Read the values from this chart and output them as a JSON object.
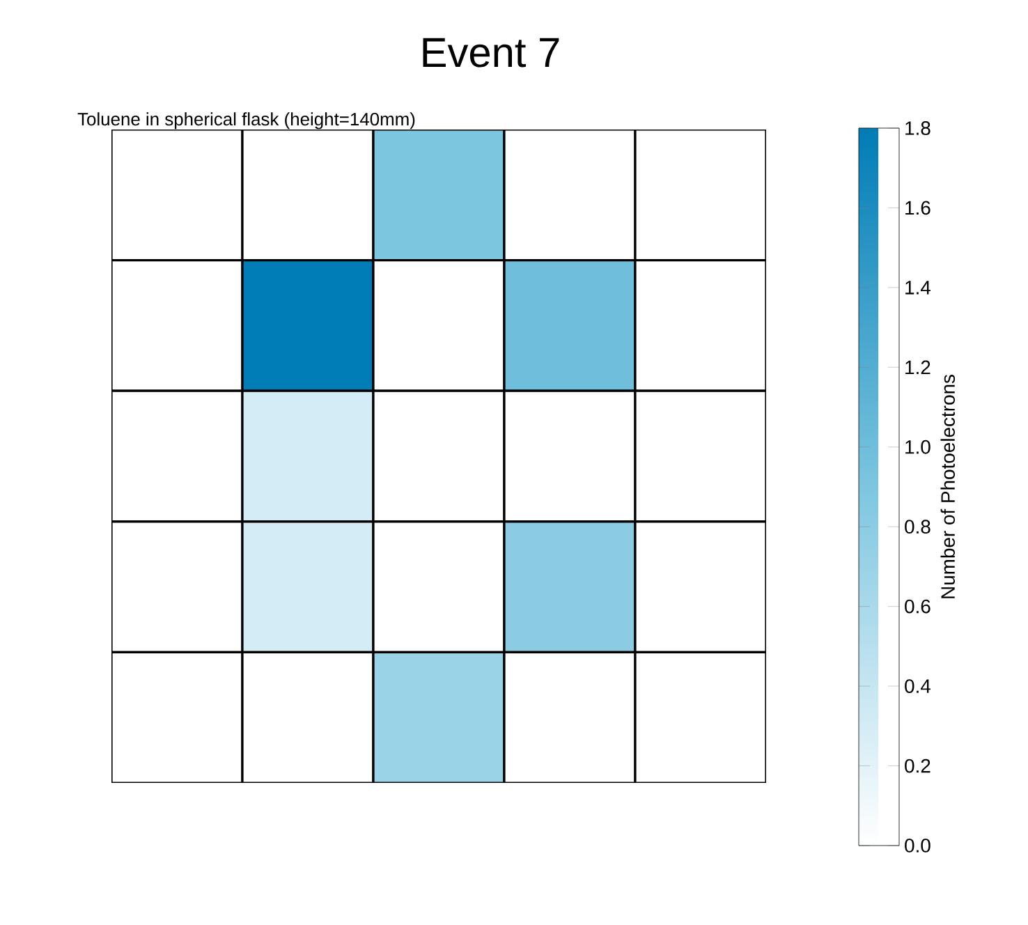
{
  "chart_data": {
    "type": "heatmap",
    "title": "Event 7",
    "subtitle": "Toluene in spherical flask (height=140mm)",
    "clabel": "Number of Photoelectrons",
    "categories": [
      null,
      null,
      null,
      null,
      null
    ],
    "y_categories": [
      null,
      null,
      null,
      null,
      null
    ],
    "cells": [
      [
        0,
        0,
        0.9,
        0,
        0
      ],
      [
        0,
        1.8,
        0,
        1.0,
        0
      ],
      [
        0,
        0.3,
        0,
        0,
        0
      ],
      [
        0,
        0.3,
        0,
        0.8,
        0
      ],
      [
        0,
        0,
        0.7,
        0,
        0
      ]
    ],
    "clim": [
      0,
      1.8
    ],
    "cticks": [
      {
        "value": 0,
        "label": "0.0"
      },
      0.2,
      0.4,
      0.6,
      0.8,
      {
        "value": 1,
        "label": "1.0"
      },
      1.2,
      1.4,
      1.6,
      1.8
    ]
  }
}
